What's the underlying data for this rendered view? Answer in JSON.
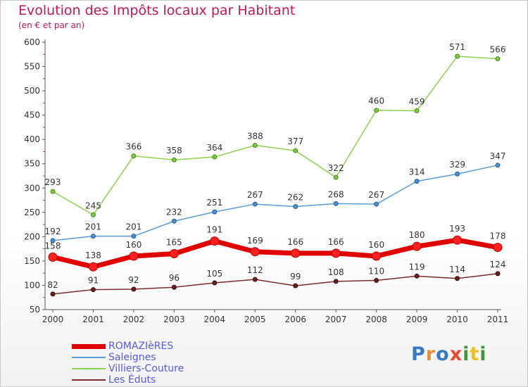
{
  "chart_data": {
    "type": "line",
    "title": "Evolution des Impôts locaux par Habitant",
    "subtitle": "(en € et par an)",
    "x": [
      2000,
      2001,
      2002,
      2003,
      2004,
      2005,
      2006,
      2007,
      2008,
      2009,
      2010,
      2011
    ],
    "ylim": [
      50,
      600
    ],
    "yticks": [
      50,
      100,
      150,
      200,
      250,
      300,
      350,
      400,
      450,
      500,
      550,
      600
    ],
    "grid": false,
    "legend_position": "bottom-left",
    "series": [
      {
        "name": "ROMAZIèRES",
        "color": "#ff0000",
        "values": [
          158,
          138,
          160,
          165,
          191,
          169,
          166,
          166,
          160,
          180,
          193,
          178
        ]
      },
      {
        "name": "Saleignes",
        "color": "#5b9bd5",
        "values": [
          192,
          201,
          201,
          232,
          251,
          267,
          262,
          268,
          267,
          314,
          329,
          347
        ]
      },
      {
        "name": "Villiers-Couture",
        "color": "#8fd14f",
        "values": [
          293,
          245,
          366,
          358,
          364,
          388,
          377,
          322,
          460,
          459,
          571,
          566
        ]
      },
      {
        "name": "Les Éduts",
        "color": "#7b2c2c",
        "values": [
          82,
          91,
          92,
          96,
          105,
          112,
          99,
          108,
          110,
          119,
          114,
          124
        ]
      }
    ]
  },
  "logo": {
    "letters": [
      "P",
      "r",
      "o",
      "x",
      "i",
      "t",
      "i"
    ],
    "colors": [
      "#3a78c8",
      "#e8902a",
      "#3a78c8",
      "#e84a2a",
      "#3a9a3a",
      "#e8c02a",
      "#3a9a3a"
    ]
  }
}
